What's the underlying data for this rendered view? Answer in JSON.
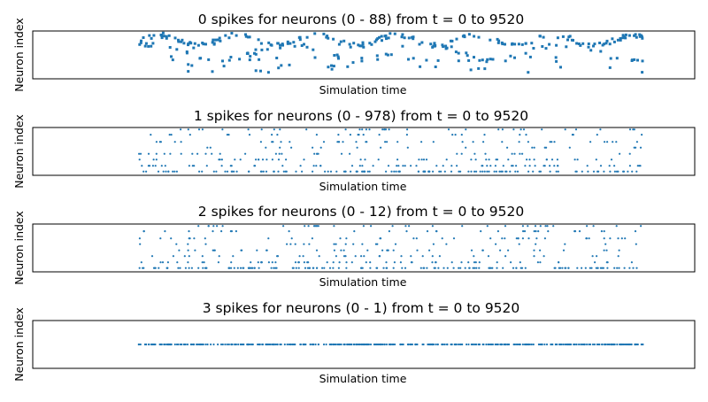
{
  "chart_data": [
    {
      "type": "scatter",
      "title": "0 spikes for neurons (0 - 88) from t = 0 to 9520",
      "xlabel": "Simulation time",
      "ylabel": "Neuron index",
      "xlim": [
        -2000,
        10500
      ],
      "ylim": [
        0,
        90
      ],
      "pattern": "waves",
      "n": 300,
      "color": "#1f77b4"
    },
    {
      "type": "scatter",
      "title": "1 spikes for neurons (0 - 978) from t = 0 to 9520",
      "xlabel": "Simulation time",
      "ylabel": "Neuron index",
      "xlim": [
        -2000,
        10500
      ],
      "ylim": [
        0,
        1000
      ],
      "pattern": "sparse",
      "n": 380,
      "color": "#1f77b4"
    },
    {
      "type": "scatter",
      "title": "2 spikes for neurons (0 - 12) from t = 0 to 9520",
      "xlabel": "Simulation time",
      "ylabel": "Neuron index",
      "xlim": [
        -2000,
        10500
      ],
      "ylim": [
        0,
        14
      ],
      "pattern": "sparse",
      "n": 380,
      "color": "#1f77b4"
    },
    {
      "type": "scatter",
      "title": "3 spikes for neurons (0 - 1) from t = 0 to 9520",
      "xlabel": "Simulation time",
      "ylabel": "Neuron index",
      "xlim": [
        -2000,
        10500
      ],
      "ylim": [
        0,
        2
      ],
      "pattern": "row",
      "n": 420,
      "color": "#1f77b4"
    }
  ]
}
